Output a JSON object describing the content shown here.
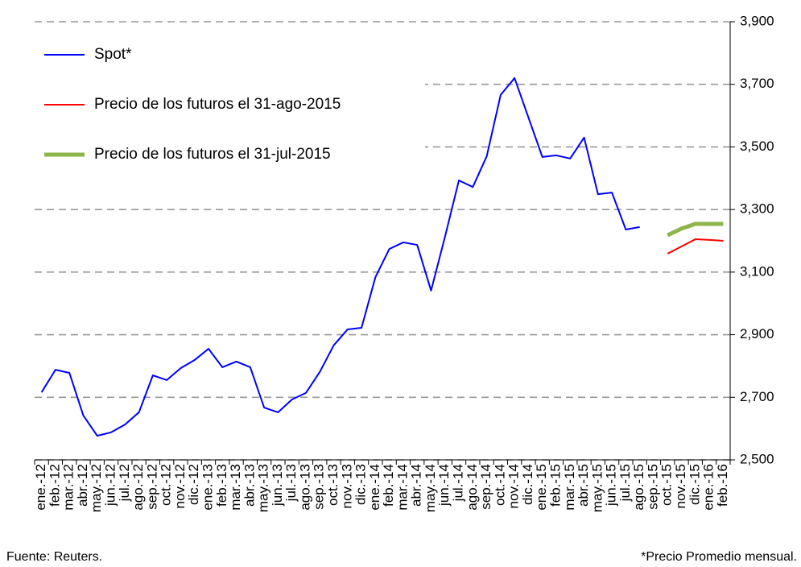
{
  "chart_data": {
    "type": "line",
    "categories": [
      "ene.-12",
      "feb.-12",
      "mar.-12",
      "abr.-12",
      "may.-12",
      "jun.-12",
      "jul.-12",
      "ago.-12",
      "sep.-12",
      "oct.-12",
      "nov.-12",
      "dic.-12",
      "ene.-13",
      "feb.-13",
      "mar.-13",
      "abr.-13",
      "may.-13",
      "jun.-13",
      "jul.-13",
      "ago.-13",
      "sep.-13",
      "oct.-13",
      "nov.-13",
      "dic.-13",
      "ene.-14",
      "feb.-14",
      "mar.-14",
      "abr.-14",
      "may.-14",
      "jun.-14",
      "jul.-14",
      "ago.-14",
      "sep.-14",
      "oct.-14",
      "nov.-14",
      "dic.-14",
      "ene.-15",
      "feb.-15",
      "mar.-15",
      "abr.-15",
      "may.-15",
      "jun.-15",
      "jul.-15",
      "ago.-15",
      "sep.-15",
      "oct.-15",
      "nov.-15",
      "dic.-15",
      "ene.-16",
      "feb.-16"
    ],
    "series": [
      {
        "name": "Spot*",
        "color": "#0000ff",
        "width": 2,
        "values": [
          2716,
          2788,
          2778,
          2642,
          2577,
          2588,
          2613,
          2652,
          2770,
          2755,
          2793,
          2819,
          2855,
          2796,
          2814,
          2796,
          2667,
          2652,
          2693,
          2714,
          2781,
          2866,
          2917,
          2922,
          3084,
          3174,
          3195,
          3187,
          3041,
          3213,
          3393,
          3372,
          3470,
          3666,
          3720,
          3594,
          3468,
          3473,
          3463,
          3530,
          3349,
          3354,
          3236,
          3244,
          null,
          null,
          null,
          null,
          null,
          null
        ]
      },
      {
        "name": "Precio de los futuros el 31-ago-2015",
        "color": "#ff0000",
        "width": 2,
        "values": [
          null,
          null,
          null,
          null,
          null,
          null,
          null,
          null,
          null,
          null,
          null,
          null,
          null,
          null,
          null,
          null,
          null,
          null,
          null,
          null,
          null,
          null,
          null,
          null,
          null,
          null,
          null,
          null,
          null,
          null,
          null,
          null,
          null,
          null,
          null,
          null,
          null,
          null,
          null,
          null,
          null,
          null,
          null,
          null,
          null,
          3159,
          3182,
          3205,
          3203,
          3200
        ]
      },
      {
        "name": "Precio de los futuros el 31-jul-2015",
        "color": "#8db54a",
        "width": 5,
        "values": [
          null,
          null,
          null,
          null,
          null,
          null,
          null,
          null,
          null,
          null,
          null,
          null,
          null,
          null,
          null,
          null,
          null,
          null,
          null,
          null,
          null,
          null,
          null,
          null,
          null,
          null,
          null,
          null,
          null,
          null,
          null,
          null,
          null,
          null,
          null,
          null,
          null,
          null,
          null,
          null,
          null,
          null,
          null,
          null,
          null,
          3218,
          3239,
          3254,
          3254,
          3254
        ]
      }
    ],
    "ylim": [
      2500,
      3900
    ],
    "yticks": [
      {
        "value": 2500,
        "label": "2,500"
      },
      {
        "value": 2700,
        "label": "2,700"
      },
      {
        "value": 2900,
        "label": "2,900"
      },
      {
        "value": 3100,
        "label": "3,100"
      },
      {
        "value": 3300,
        "label": "3,300"
      },
      {
        "value": 3500,
        "label": "3,500"
      },
      {
        "value": 3700,
        "label": "3,700"
      },
      {
        "value": 3900,
        "label": "3,900"
      }
    ],
    "grid": true,
    "legend": "top-left",
    "source": "Fuente: Reuters.",
    "note": "*Precio Promedio mensual."
  }
}
